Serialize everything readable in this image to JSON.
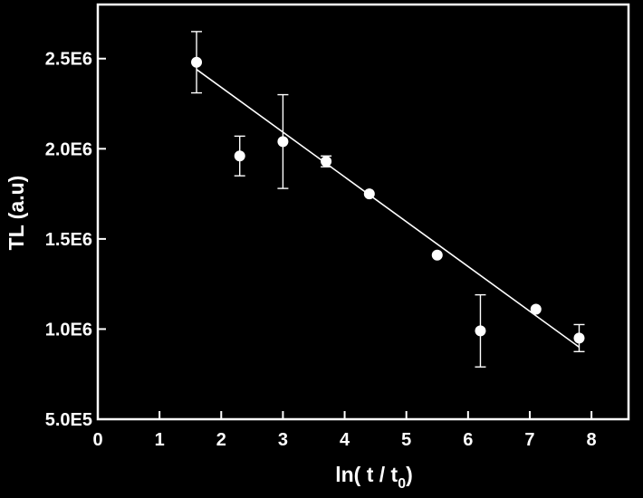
{
  "chart_data": {
    "type": "scatter",
    "title": "",
    "xlabel": {
      "main": "ln( t / t",
      "subscript": "0",
      "close": ")"
    },
    "ylabel": "TL (a.u)",
    "xlim": [
      0,
      8.6
    ],
    "ylim": [
      500000,
      2800000
    ],
    "x_ticks": [
      0,
      1,
      2,
      3,
      4,
      5,
      6,
      7,
      8
    ],
    "x_tick_labels": [
      "0",
      "1",
      "2",
      "3",
      "4",
      "5",
      "6",
      "7",
      "8"
    ],
    "y_ticks": [
      500000,
      1000000,
      1500000,
      2000000,
      2500000
    ],
    "y_tick_labels": [
      "5.0E5",
      "1.0E6",
      "1.5E6",
      "2.0E6",
      "2.5E6"
    ],
    "grid": false,
    "colors": {
      "background": "#000000",
      "foreground": "#ffffff"
    },
    "series": [
      {
        "points": [
          {
            "x": 1.6,
            "y": 2480000,
            "err": 170000
          },
          {
            "x": 2.3,
            "y": 1960000,
            "err": 110000
          },
          {
            "x": 3.0,
            "y": 2040000,
            "err": 260000
          },
          {
            "x": 3.7,
            "y": 1930000,
            "err": 30000
          },
          {
            "x": 4.4,
            "y": 1750000,
            "err": 0
          },
          {
            "x": 5.5,
            "y": 1410000,
            "err": 0
          },
          {
            "x": 6.2,
            "y": 990000,
            "err": 200000
          },
          {
            "x": 7.1,
            "y": 1110000,
            "err": 0
          },
          {
            "x": 7.8,
            "y": 950000,
            "err": 75000
          }
        ]
      }
    ],
    "fit_line": {
      "x": [
        1.6,
        7.8
      ],
      "y": [
        2440000,
        900000
      ]
    }
  }
}
